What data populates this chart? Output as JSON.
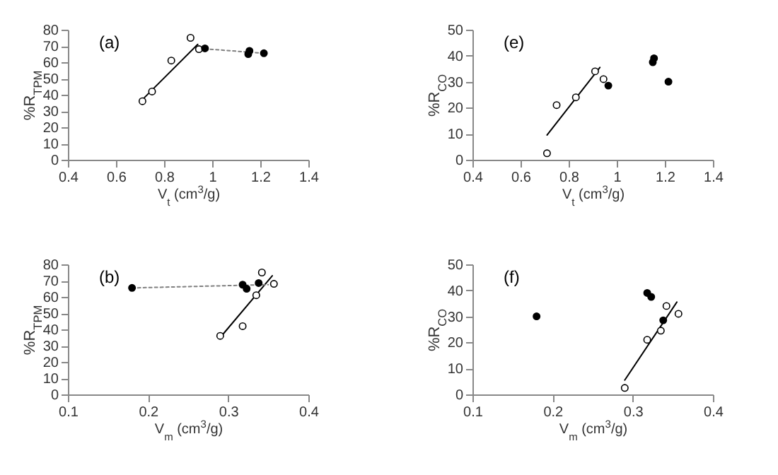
{
  "chart_data": [
    {
      "type": "scatter",
      "ylabel": "%R$_{TPM}$",
      "xlabel": "V$_{t}$ (cm$^{3}$/g)",
      "annotations": [
        "(a)"
      ],
      "xlim": [
        0.4,
        1.4
      ],
      "xticks": [
        0.4,
        0.6,
        0.8,
        1,
        1.2,
        1.4
      ],
      "ylim": [
        0,
        80
      ],
      "yticks": [
        0,
        10,
        20,
        30,
        40,
        50,
        60,
        70,
        80
      ],
      "grid": false,
      "series": [
        {
          "type": "line",
          "color": "#000000",
          "line_style": "solid",
          "x": [
            0.71,
            0.94
          ],
          "values": [
            37,
            71
          ]
        },
        {
          "type": "line",
          "color": "#808080",
          "line_style": "dotted",
          "x": [
            0.945,
            1.215
          ],
          "values": [
            68.5,
            65.5
          ]
        },
        {
          "color": "#ffffff",
          "marker": "circle",
          "x": [
            0.71,
            0.75,
            0.83,
            0.91,
            0.945
          ],
          "values": [
            36,
            42,
            61,
            75,
            68
          ]
        },
        {
          "color": "#000000",
          "marker": "circle",
          "x": [
            0.97,
            1.15,
            1.155,
            1.215
          ],
          "values": [
            68.5,
            65,
            67,
            65.5
          ]
        }
      ]
    },
    {
      "type": "scatter",
      "ylabel": "%R$_{CO}$",
      "xlabel": "V$_{t}$ (cm$^{3}$/g)",
      "annotations": [
        "(e)"
      ],
      "xlim": [
        0.4,
        1.4
      ],
      "xticks": [
        0.4,
        0.6,
        0.8,
        1,
        1.2,
        1.4
      ],
      "ylim": [
        0,
        50
      ],
      "yticks": [
        0,
        10,
        20,
        30,
        40,
        50
      ],
      "grid": false,
      "series": [
        {
          "type": "line",
          "color": "#000000",
          "line_style": "solid",
          "x": [
            0.71,
            0.93
          ],
          "values": [
            9.5,
            35.5
          ]
        },
        {
          "color": "#ffffff",
          "marker": "circle",
          "x": [
            0.71,
            0.75,
            0.83,
            0.91,
            0.945
          ],
          "values": [
            2.5,
            21,
            24,
            34,
            31
          ]
        },
        {
          "color": "#000000",
          "marker": "circle",
          "x": [
            0.965,
            1.15,
            1.155,
            1.215
          ],
          "values": [
            28.5,
            37.5,
            39,
            30
          ]
        }
      ]
    },
    {
      "type": "scatter",
      "ylabel": "%R$_{TPM}$",
      "xlabel": "V$_{m}$ (cm$^{3}$/g)",
      "annotations": [
        "(b)"
      ],
      "xlim": [
        0.1,
        0.4
      ],
      "xticks": [
        0.1,
        0.2,
        0.3,
        0.4
      ],
      "ylim": [
        0,
        80
      ],
      "yticks": [
        0,
        10,
        20,
        30,
        40,
        50,
        60,
        70,
        80
      ],
      "grid": false,
      "series": [
        {
          "type": "line",
          "color": "#000000",
          "line_style": "solid",
          "x": [
            0.29,
            0.355
          ],
          "values": [
            35,
            73
          ]
        },
        {
          "type": "line",
          "color": "#808080",
          "line_style": "dotted",
          "x": [
            0.18,
            0.35
          ],
          "values": [
            65.5,
            67.5
          ]
        },
        {
          "color": "#ffffff",
          "marker": "circle",
          "x": [
            0.29,
            0.318,
            0.335,
            0.342,
            0.357
          ],
          "values": [
            36,
            42,
            61,
            75,
            68
          ]
        },
        {
          "color": "#000000",
          "marker": "circle",
          "x": [
            0.18,
            0.318,
            0.323,
            0.338
          ],
          "values": [
            65.5,
            67.5,
            65,
            68.5
          ]
        }
      ]
    },
    {
      "type": "scatter",
      "ylabel": "%R$_{CO}$",
      "xlabel": "V$_{m}$ (cm$^{3}$/g)",
      "annotations": [
        "(f)"
      ],
      "xlim": [
        0.1,
        0.4
      ],
      "xticks": [
        0.1,
        0.2,
        0.3,
        0.4
      ],
      "ylim": [
        0,
        50
      ],
      "yticks": [
        0,
        10,
        20,
        30,
        40,
        50
      ],
      "grid": false,
      "series": [
        {
          "type": "line",
          "color": "#000000",
          "line_style": "solid",
          "x": [
            0.29,
            0.355
          ],
          "values": [
            5.5,
            35.5
          ]
        },
        {
          "color": "#ffffff",
          "marker": "circle",
          "x": [
            0.29,
            0.318,
            0.335,
            0.342,
            0.357
          ],
          "values": [
            2.5,
            21,
            24.5,
            34,
            31
          ]
        },
        {
          "color": "#000000",
          "marker": "circle",
          "x": [
            0.18,
            0.318,
            0.323,
            0.338
          ],
          "values": [
            30,
            39,
            37.5,
            28.5
          ]
        }
      ]
    }
  ]
}
